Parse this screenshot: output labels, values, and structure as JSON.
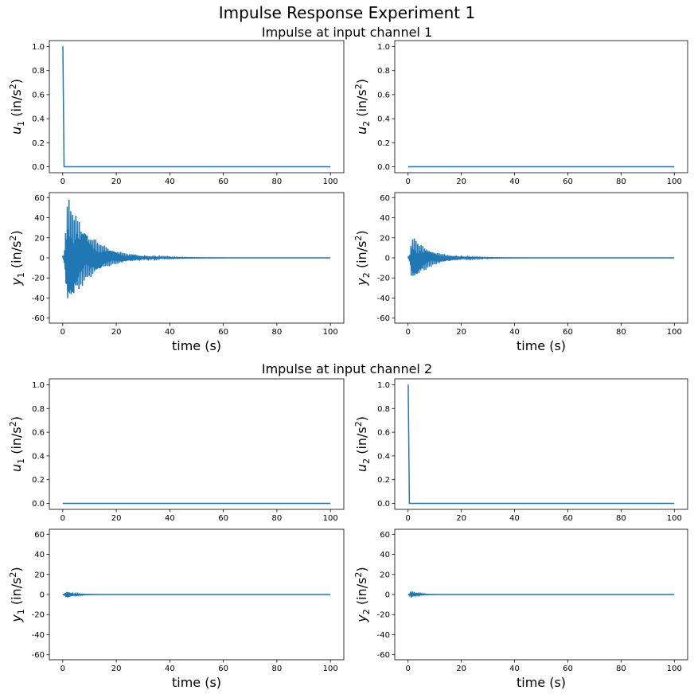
{
  "figure": {
    "title": "Impulse Response Experiment 1",
    "sections": [
      {
        "subtitle": "Impulse at input channel 1"
      },
      {
        "subtitle": "Impulse at input channel 2"
      }
    ]
  },
  "colors": {
    "line": "#1f77b4",
    "axes": "#000000",
    "background": "#ffffff"
  },
  "chart_data": [
    {
      "type": "line",
      "section": 1,
      "panel": "u1",
      "ylabel_var": "u",
      "ylabel_sub": "1",
      "ylabel_unit": "(in/s",
      "ylabel_sup": "2",
      "ylabel_close": ")",
      "xlabel": "",
      "xlim": [
        -5,
        105
      ],
      "ylim": [
        -0.05,
        1.05
      ],
      "xticks": [
        0,
        20,
        40,
        60,
        80,
        100
      ],
      "yticks": [
        0.0,
        0.2,
        0.4,
        0.6,
        0.8,
        1.0
      ],
      "ytick_fmt": 1,
      "signal": {
        "kind": "impulse",
        "amplitude": 1.0,
        "t_impulse": 0,
        "t_end": 100
      }
    },
    {
      "type": "line",
      "section": 1,
      "panel": "u2",
      "ylabel_var": "u",
      "ylabel_sub": "2",
      "ylabel_unit": "(in/s",
      "ylabel_sup": "2",
      "ylabel_close": ")",
      "xlabel": "",
      "xlim": [
        -5,
        105
      ],
      "ylim": [
        -0.05,
        1.05
      ],
      "xticks": [
        0,
        20,
        40,
        60,
        80,
        100
      ],
      "yticks": [
        0.0,
        0.2,
        0.4,
        0.6,
        0.8,
        1.0
      ],
      "ytick_fmt": 1,
      "signal": {
        "kind": "zero",
        "t_end": 100
      }
    },
    {
      "type": "line",
      "section": 1,
      "panel": "y1",
      "ylabel_var": "y",
      "ylabel_sub": "1",
      "ylabel_unit": "(in/s",
      "ylabel_sup": "2",
      "ylabel_close": ")",
      "xlabel": "time (s)",
      "xlim": [
        -5,
        105
      ],
      "ylim": [
        -65,
        65
      ],
      "xticks": [
        0,
        20,
        40,
        60,
        80,
        100
      ],
      "yticks": [
        -60,
        -40,
        -20,
        0,
        20,
        40,
        60
      ],
      "ytick_fmt": 0,
      "signal": {
        "kind": "decaying_oscillation",
        "peak_max": 61,
        "peak_min": -52,
        "t_peak": 1.8,
        "settle_time": 38,
        "t_end": 100
      }
    },
    {
      "type": "line",
      "section": 1,
      "panel": "y2",
      "ylabel_var": "y",
      "ylabel_sub": "2",
      "ylabel_unit": "(in/s",
      "ylabel_sup": "2",
      "ylabel_close": ")",
      "xlabel": "time (s)",
      "xlim": [
        -5,
        105
      ],
      "ylim": [
        -65,
        65
      ],
      "xticks": [
        0,
        20,
        40,
        60,
        80,
        100
      ],
      "yticks": [
        -60,
        -40,
        -20,
        0,
        20,
        40,
        60
      ],
      "ytick_fmt": 0,
      "signal": {
        "kind": "decaying_oscillation",
        "peak_max": 21,
        "peak_min": -25,
        "t_peak": 1.5,
        "settle_time": 30,
        "t_end": 100
      }
    },
    {
      "type": "line",
      "section": 2,
      "panel": "u1",
      "ylabel_var": "u",
      "ylabel_sub": "1",
      "ylabel_unit": "(in/s",
      "ylabel_sup": "2",
      "ylabel_close": ")",
      "xlabel": "",
      "xlim": [
        -5,
        105
      ],
      "ylim": [
        -0.05,
        1.05
      ],
      "xticks": [
        0,
        20,
        40,
        60,
        80,
        100
      ],
      "yticks": [
        0.0,
        0.2,
        0.4,
        0.6,
        0.8,
        1.0
      ],
      "ytick_fmt": 1,
      "signal": {
        "kind": "zero",
        "t_end": 100
      }
    },
    {
      "type": "line",
      "section": 2,
      "panel": "u2",
      "ylabel_var": "u",
      "ylabel_sub": "2",
      "ylabel_unit": "(in/s",
      "ylabel_sup": "2",
      "ylabel_close": ")",
      "xlabel": "",
      "xlim": [
        -5,
        105
      ],
      "ylim": [
        -0.05,
        1.05
      ],
      "xticks": [
        0,
        20,
        40,
        60,
        80,
        100
      ],
      "yticks": [
        0.0,
        0.2,
        0.4,
        0.6,
        0.8,
        1.0
      ],
      "ytick_fmt": 1,
      "signal": {
        "kind": "impulse",
        "amplitude": 1.0,
        "t_impulse": 0,
        "t_end": 100
      }
    },
    {
      "type": "line",
      "section": 2,
      "panel": "y1",
      "ylabel_var": "y",
      "ylabel_sub": "1",
      "ylabel_unit": "(in/s",
      "ylabel_sup": "2",
      "ylabel_close": ")",
      "xlabel": "time (s)",
      "xlim": [
        -5,
        105
      ],
      "ylim": [
        -65,
        65
      ],
      "xticks": [
        0,
        20,
        40,
        60,
        80,
        100
      ],
      "yticks": [
        -60,
        -40,
        -20,
        0,
        20,
        40,
        60
      ],
      "ytick_fmt": 0,
      "signal": {
        "kind": "decaying_oscillation",
        "peak_max": 3,
        "peak_min": -4,
        "t_peak": 1.5,
        "settle_time": 12,
        "t_end": 100
      }
    },
    {
      "type": "line",
      "section": 2,
      "panel": "y2",
      "ylabel_var": "y",
      "ylabel_sub": "2",
      "ylabel_unit": "(in/s",
      "ylabel_sup": "2",
      "ylabel_close": ")",
      "xlabel": "time (s)",
      "xlim": [
        -5,
        105
      ],
      "ylim": [
        -65,
        65
      ],
      "xticks": [
        0,
        20,
        40,
        60,
        80,
        100
      ],
      "yticks": [
        -60,
        -40,
        -20,
        0,
        20,
        40,
        60
      ],
      "ytick_fmt": 0,
      "signal": {
        "kind": "decaying_oscillation",
        "peak_max": 4,
        "peak_min": -3,
        "t_peak": 1.2,
        "settle_time": 10,
        "t_end": 100
      }
    }
  ]
}
